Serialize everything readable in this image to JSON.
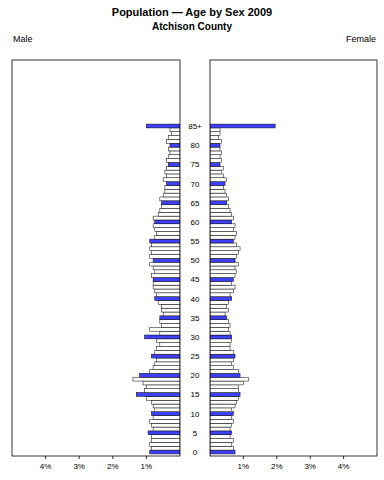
{
  "chart_data": {
    "type": "bar",
    "orientation": "horizontal",
    "title": "Population — Age by Sex 2009",
    "subtitle": "Atchison County",
    "categories": [
      "0",
      null,
      null,
      null,
      null,
      "5",
      null,
      null,
      null,
      null,
      "10",
      null,
      null,
      null,
      null,
      "15",
      null,
      null,
      null,
      null,
      "20",
      null,
      null,
      null,
      null,
      "25",
      null,
      null,
      null,
      null,
      "30",
      null,
      null,
      null,
      null,
      "35",
      null,
      null,
      null,
      null,
      "40",
      null,
      null,
      null,
      null,
      "45",
      null,
      null,
      null,
      null,
      "50",
      null,
      null,
      null,
      null,
      "55",
      null,
      null,
      null,
      null,
      "60",
      null,
      null,
      null,
      null,
      "65",
      null,
      null,
      null,
      null,
      "70",
      null,
      null,
      null,
      null,
      "75",
      null,
      null,
      null,
      null,
      "80",
      null,
      null,
      null,
      null,
      "85+"
    ],
    "series": [
      {
        "name": "Male",
        "color": "#3f3fff",
        "values": [
          0.9,
          0.85,
          0.9,
          0.85,
          0.85,
          0.95,
          0.8,
          0.85,
          0.9,
          0.8,
          0.85,
          0.75,
          0.8,
          0.85,
          1.0,
          1.3,
          1.05,
          1.0,
          1.1,
          1.4,
          1.2,
          0.9,
          0.8,
          0.75,
          0.7,
          0.85,
          0.75,
          0.7,
          0.6,
          0.7,
          1.05,
          0.6,
          0.9,
          0.55,
          0.6,
          0.6,
          0.5,
          0.55,
          0.55,
          0.65,
          0.75,
          0.7,
          0.75,
          0.8,
          0.8,
          0.8,
          0.85,
          0.75,
          0.8,
          0.9,
          0.8,
          0.9,
          0.85,
          0.9,
          0.85,
          0.9,
          0.75,
          0.7,
          0.75,
          0.8,
          0.75,
          0.8,
          0.65,
          0.6,
          0.55,
          0.55,
          0.6,
          0.5,
          0.45,
          0.45,
          0.4,
          0.5,
          0.4,
          0.45,
          0.4,
          0.35,
          0.4,
          0.35,
          0.3,
          0.35,
          0.3,
          0.4,
          0.35,
          0.25,
          0.3,
          1.0
        ]
      },
      {
        "name": "Female",
        "color": "#3f3fff",
        "values": [
          0.75,
          0.7,
          0.65,
          0.7,
          0.6,
          0.65,
          0.6,
          0.65,
          0.7,
          0.65,
          0.7,
          0.65,
          0.75,
          0.8,
          0.85,
          0.9,
          0.85,
          0.85,
          1.0,
          1.15,
          0.9,
          0.85,
          0.7,
          0.65,
          0.7,
          0.75,
          0.7,
          0.6,
          0.6,
          0.65,
          0.65,
          0.6,
          0.55,
          0.6,
          0.55,
          0.5,
          0.45,
          0.55,
          0.5,
          0.55,
          0.65,
          0.6,
          0.7,
          0.75,
          0.65,
          0.7,
          0.75,
          0.8,
          0.75,
          0.85,
          0.75,
          0.8,
          0.85,
          0.9,
          0.8,
          0.7,
          0.75,
          0.8,
          0.7,
          0.75,
          0.65,
          0.7,
          0.65,
          0.6,
          0.55,
          0.5,
          0.55,
          0.5,
          0.45,
          0.4,
          0.45,
          0.5,
          0.4,
          0.35,
          0.4,
          0.3,
          0.35,
          0.3,
          0.35,
          0.3,
          0.3,
          0.35,
          0.25,
          0.3,
          0.3,
          1.95
        ]
      }
    ],
    "xlim": [
      0,
      5
    ],
    "xticks": [
      {
        "value": 1,
        "label": "1%"
      },
      {
        "value": 2,
        "label": "2%"
      },
      {
        "value": 3,
        "label": "3%"
      },
      {
        "value": 4,
        "label": "4%"
      }
    ]
  }
}
